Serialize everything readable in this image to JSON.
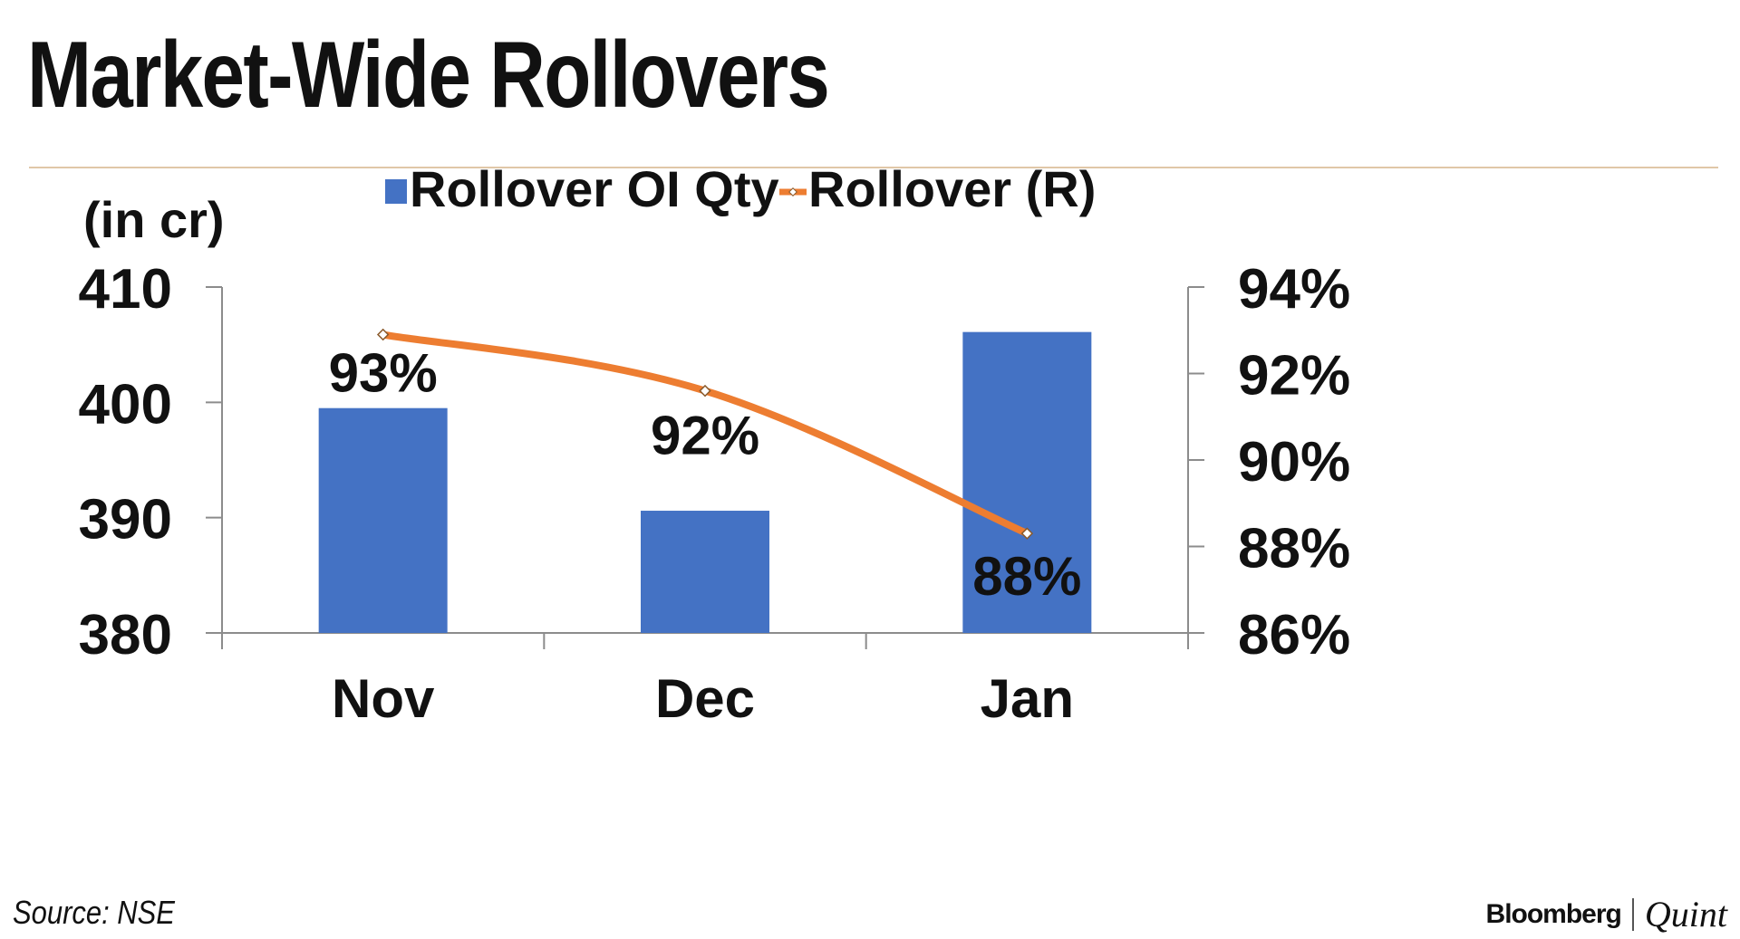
{
  "title": "Market-Wide Rollovers",
  "source": "Source: NSE",
  "brand": {
    "part1": "Bloomberg",
    "part2": "Quint"
  },
  "colors": {
    "bar": "#4472C4",
    "line": "#ED7D31",
    "rule": "#E0C7A8",
    "text": "#111111"
  },
  "chart_data": {
    "type": "bar",
    "categories": [
      "Nov",
      "Dec",
      "Jan"
    ],
    "y_unit_label": "(in cr)",
    "yticks_left": [
      "410",
      "400",
      "390",
      "380"
    ],
    "yticks_right": [
      "94%",
      "92%",
      "90%",
      "88%",
      "86%"
    ],
    "ylim_left": [
      380,
      410
    ],
    "ylim_right": [
      86,
      94
    ],
    "legend_position": "top",
    "grid": false,
    "series": [
      {
        "name": "Rollover OI Qty",
        "type": "bar",
        "axis": "left",
        "values": [
          399.5,
          390.6,
          406.1
        ]
      },
      {
        "name": "Rollover (R)",
        "type": "line",
        "axis": "right",
        "values": [
          92.9,
          91.6,
          88.3
        ],
        "data_labels": [
          "93%",
          "92%",
          "88%"
        ]
      }
    ]
  }
}
